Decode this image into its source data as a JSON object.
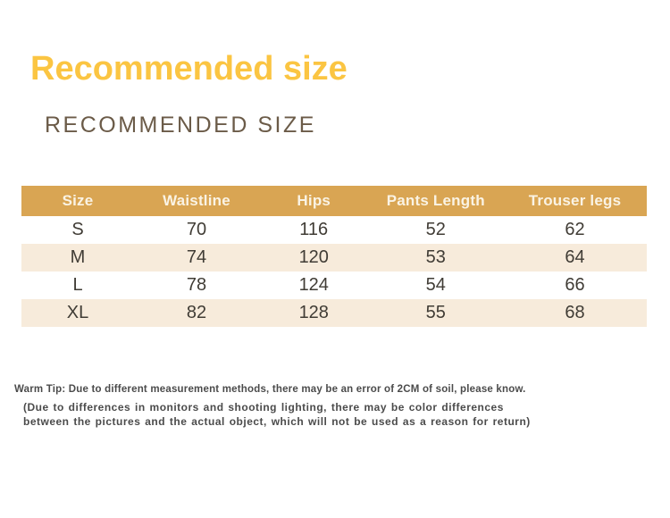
{
  "header": {
    "title": "Recommended size",
    "subtitle": "RECOMMENDED SIZE"
  },
  "size_table": {
    "columns": [
      "Size",
      "Waistline",
      "Hips",
      "Pants Length",
      "Trouser legs"
    ],
    "rows": [
      [
        "S",
        "70",
        "116",
        "52",
        "62"
      ],
      [
        "M",
        "74",
        "120",
        "53",
        "64"
      ],
      [
        "L",
        "78",
        "124",
        "54",
        "66"
      ],
      [
        "XL",
        "82",
        "128",
        "55",
        "68"
      ]
    ]
  },
  "notes": {
    "warm_tip": "Warm Tip: Due to different measurement methods, there may be an error of 2CM of soil, please know.",
    "color_disclaimer": "(Due to differences in monitors and shooting lighting, there may be color differences between the pictures and the actual object, which will not be used as a reason for return)"
  },
  "colors": {
    "title_yellow": "#fbc542",
    "subtitle_brown": "#6b5b48",
    "table_header_gold": "#d9a553",
    "table_header_text": "#faf3e4",
    "row_alt_cream": "#f7ebdb",
    "body_text": "#403c35",
    "note_text": "#4b4b4b",
    "background": "#ffffff"
  }
}
